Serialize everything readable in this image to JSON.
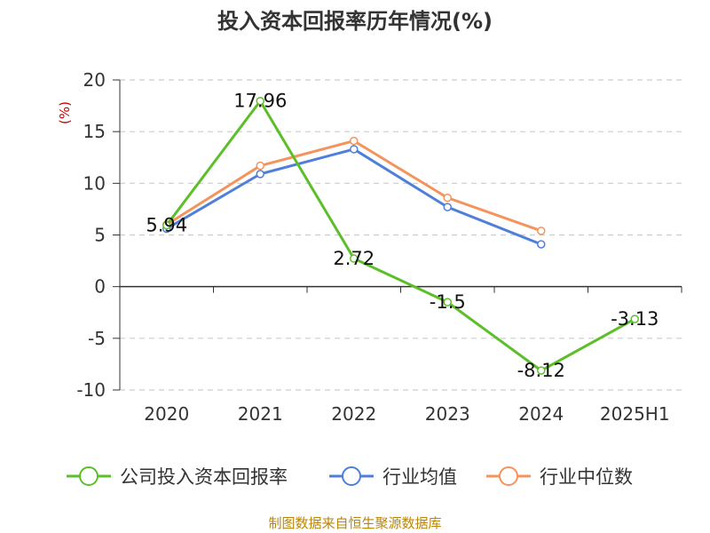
{
  "title": "投入资本回报率历年情况(%)",
  "footer": "制图数据来自恒生聚源数据库",
  "colors": {
    "company": "#5cbf2a",
    "average": "#4f7fdb",
    "median": "#f5935c",
    "axis": "#333333",
    "grid": "#cccccc",
    "ylabel": "#cc0000"
  },
  "chart_data": {
    "type": "line",
    "title": "投入资本回报率历年情况(%)",
    "ylabel": "(%)",
    "xlabel": "",
    "categories": [
      "2020",
      "2021",
      "2022",
      "2023",
      "2024",
      "2025H1"
    ],
    "ylim": [
      -10,
      20
    ],
    "yticks": [
      20,
      15,
      10,
      5,
      0,
      -5,
      -10
    ],
    "grid": "horizontal dashed",
    "legend_position": "bottom",
    "series": [
      {
        "name": "公司投入资本回报率",
        "color": "#5cbf2a",
        "values": [
          5.94,
          17.96,
          2.72,
          -1.5,
          -8.12,
          -3.13
        ],
        "data_labels": [
          "5.94",
          "17.96",
          "2.72",
          "-1.5",
          "-8.12",
          "-3.13"
        ]
      },
      {
        "name": "行业均值",
        "color": "#4f7fdb",
        "values": [
          5.6,
          10.9,
          13.3,
          7.7,
          4.1,
          null
        ]
      },
      {
        "name": "行业中位数",
        "color": "#f5935c",
        "values": [
          6.0,
          11.7,
          14.1,
          8.6,
          5.4,
          null
        ]
      }
    ]
  }
}
